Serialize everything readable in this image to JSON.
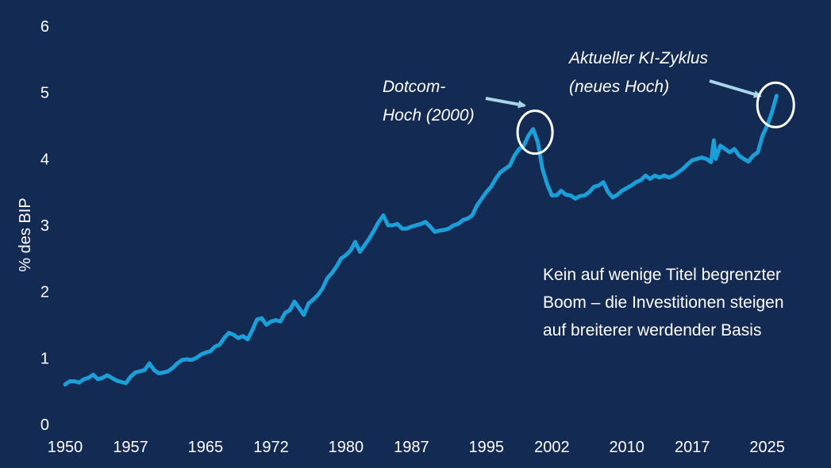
{
  "chart_data": {
    "type": "line",
    "title": "",
    "xlabel": "",
    "ylabel": "% des BIP",
    "xlim": [
      1950,
      2028
    ],
    "ylim": [
      0,
      6
    ],
    "yticks": [
      0,
      1,
      2,
      3,
      4,
      5,
      6
    ],
    "xticks": [
      "1950",
      "1957",
      "1965",
      "1972",
      "1980",
      "1987",
      "1995",
      "2002",
      "2010",
      "2017",
      "2025"
    ],
    "grid": false,
    "legend": "none",
    "colors": {
      "background": "#132a52",
      "line": "#1a9fd9",
      "text": "#ffffff",
      "arrow": "#a8d4ec",
      "circle": "#ffffff"
    },
    "series": [
      {
        "x": [
          1950.0,
          1950.5,
          1951.0,
          1951.5,
          1952.0,
          1952.5,
          1953.0,
          1953.5,
          1954.0,
          1954.5,
          1955.0,
          1955.5,
          1956.0,
          1956.5,
          1957.0,
          1957.5,
          1958.0,
          1958.5,
          1959.0,
          1959.5,
          1960.0,
          1960.5,
          1961.0,
          1961.5,
          1962.0,
          1962.5,
          1963.0,
          1963.5,
          1964.0,
          1964.5,
          1965.0,
          1965.5,
          1966.0,
          1966.5,
          1967.0,
          1967.5,
          1968.0,
          1968.5,
          1969.0,
          1969.5,
          1970.0,
          1970.5,
          1971.0,
          1971.5,
          1972.0,
          1972.5,
          1973.0,
          1973.5,
          1974.0,
          1974.5,
          1975.0,
          1975.5,
          1976.0,
          1976.5,
          1977.0,
          1977.5,
          1978.0,
          1978.5,
          1979.0,
          1979.5,
          1980.0,
          1980.5,
          1981.0,
          1981.5,
          1982.0,
          1982.5,
          1983.0,
          1983.5,
          1984.0,
          1984.5,
          1985.0,
          1985.5,
          1986.0,
          1986.5,
          1987.0,
          1987.5,
          1988.0,
          1988.5,
          1989.0,
          1989.5,
          1990.0,
          1990.5,
          1991.0,
          1991.5,
          1992.0,
          1992.5,
          1993.0,
          1993.5,
          1994.0,
          1994.5,
          1995.0,
          1995.5,
          1996.0,
          1996.5,
          1997.0,
          1997.5,
          1998.0,
          1998.5,
          1999.0,
          1999.5,
          2000.0,
          2000.5,
          2001.0,
          2001.5,
          2002.0,
          2002.5,
          2003.0,
          2003.5,
          2004.0,
          2004.5,
          2005.0,
          2005.5,
          2006.0,
          2006.5,
          2007.0,
          2007.5,
          2008.0,
          2008.5,
          2009.0,
          2009.5,
          2010.0,
          2010.5,
          2011.0,
          2011.5,
          2012.0,
          2012.5,
          2013.0,
          2013.5,
          2014.0,
          2014.5,
          2015.0,
          2015.5,
          2016.0,
          2016.5,
          2017.0,
          2017.5,
          2018.0,
          2018.5,
          2019.0,
          2019.3,
          2019.5,
          2020.0,
          2020.5,
          2021.0,
          2021.5,
          2022.0,
          2022.5,
          2023.0,
          2023.5,
          2024.0,
          2024.5,
          2025.0,
          2025.5,
          2026.0
        ],
        "values": [
          0.6,
          0.65,
          0.65,
          0.63,
          0.68,
          0.7,
          0.75,
          0.68,
          0.7,
          0.74,
          0.7,
          0.66,
          0.64,
          0.62,
          0.72,
          0.78,
          0.8,
          0.82,
          0.92,
          0.82,
          0.77,
          0.78,
          0.8,
          0.85,
          0.92,
          0.97,
          0.98,
          0.97,
          1.0,
          1.05,
          1.08,
          1.1,
          1.17,
          1.2,
          1.3,
          1.38,
          1.35,
          1.3,
          1.33,
          1.28,
          1.42,
          1.58,
          1.6,
          1.5,
          1.55,
          1.57,
          1.55,
          1.68,
          1.72,
          1.85,
          1.75,
          1.65,
          1.82,
          1.88,
          1.95,
          2.05,
          2.2,
          2.28,
          2.38,
          2.5,
          2.55,
          2.62,
          2.75,
          2.6,
          2.7,
          2.8,
          2.92,
          3.05,
          3.15,
          3.0,
          3.0,
          3.02,
          2.95,
          2.95,
          2.98,
          3.0,
          3.02,
          3.05,
          2.98,
          2.9,
          2.92,
          2.93,
          2.95,
          3.0,
          3.02,
          3.08,
          3.1,
          3.15,
          3.3,
          3.4,
          3.5,
          3.58,
          3.7,
          3.8,
          3.85,
          3.9,
          4.05,
          4.15,
          4.2,
          4.35,
          4.45,
          4.25,
          3.85,
          3.62,
          3.45,
          3.45,
          3.52,
          3.46,
          3.45,
          3.4,
          3.44,
          3.45,
          3.5,
          3.58,
          3.6,
          3.65,
          3.5,
          3.42,
          3.46,
          3.52,
          3.56,
          3.6,
          3.65,
          3.68,
          3.75,
          3.7,
          3.75,
          3.72,
          3.75,
          3.72,
          3.75,
          3.8,
          3.85,
          3.92,
          3.98,
          4.0,
          4.02,
          4.0,
          3.95,
          4.28,
          4.0,
          4.2,
          4.15,
          4.1,
          4.15,
          4.05,
          4.0,
          3.96,
          4.05,
          4.1,
          4.35,
          4.5,
          4.7,
          4.95
        ]
      }
    ],
    "annotations": {
      "dotcom": {
        "lines": [
          "Dotcom-",
          "Hoch (2000)"
        ],
        "x": 2000.2,
        "y": 4.45
      },
      "ki": {
        "lines": [
          "Aktueller KI-Zyklus",
          "(neues Hoch)"
        ],
        "x": 2025.9,
        "y": 4.85
      }
    },
    "note": [
      "Kein auf  wenige Titel begrenzter",
      "Boom – die Investitionen steigen",
      "auf breiterer werdender Basis"
    ]
  }
}
